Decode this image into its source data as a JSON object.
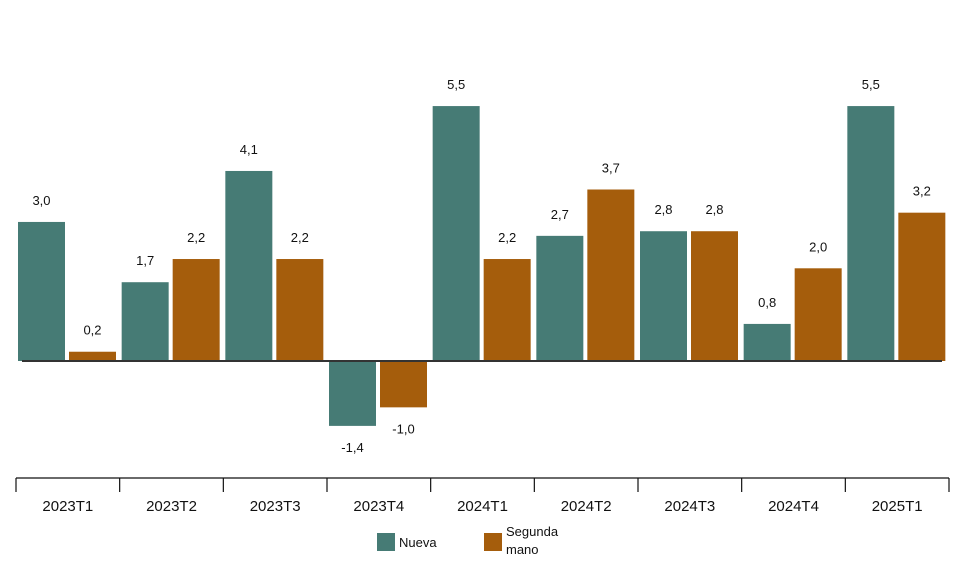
{
  "chart_data": {
    "type": "bar",
    "categories": [
      "2023T1",
      "2023T2",
      "2023T3",
      "2023T4",
      "2024T1",
      "2024T2",
      "2024T3",
      "2024T4",
      "2025T1"
    ],
    "series": [
      {
        "name": "Nueva",
        "color": "#467b75",
        "values": [
          3.0,
          1.7,
          4.1,
          -1.4,
          5.5,
          2.7,
          2.8,
          0.8,
          5.5
        ],
        "labels": [
          "3,0",
          "1,7",
          "4,1",
          "-1,4",
          "5,5",
          "2,7",
          "2,8",
          "0,8",
          "5,5"
        ]
      },
      {
        "name": "Segunda mano",
        "color": "#a55d0c",
        "values": [
          0.2,
          2.2,
          2.2,
          -1.0,
          2.2,
          3.7,
          2.8,
          2.0,
          3.2
        ],
        "labels": [
          "0,2",
          "2,2",
          "2,2",
          "-1,0",
          "2,2",
          "3,7",
          "2,8",
          "2,0",
          "3,2"
        ]
      }
    ],
    "legend": {
      "position": "bottom",
      "items": [
        {
          "label": "Nueva",
          "color": "#467b75"
        },
        {
          "label_lines": [
            "Segunda",
            "mano"
          ],
          "color": "#a55d0c"
        }
      ]
    },
    "title": "",
    "xlabel": "",
    "ylabel": "",
    "ylim": [
      -2.5,
      6.5
    ],
    "grid": false
  }
}
